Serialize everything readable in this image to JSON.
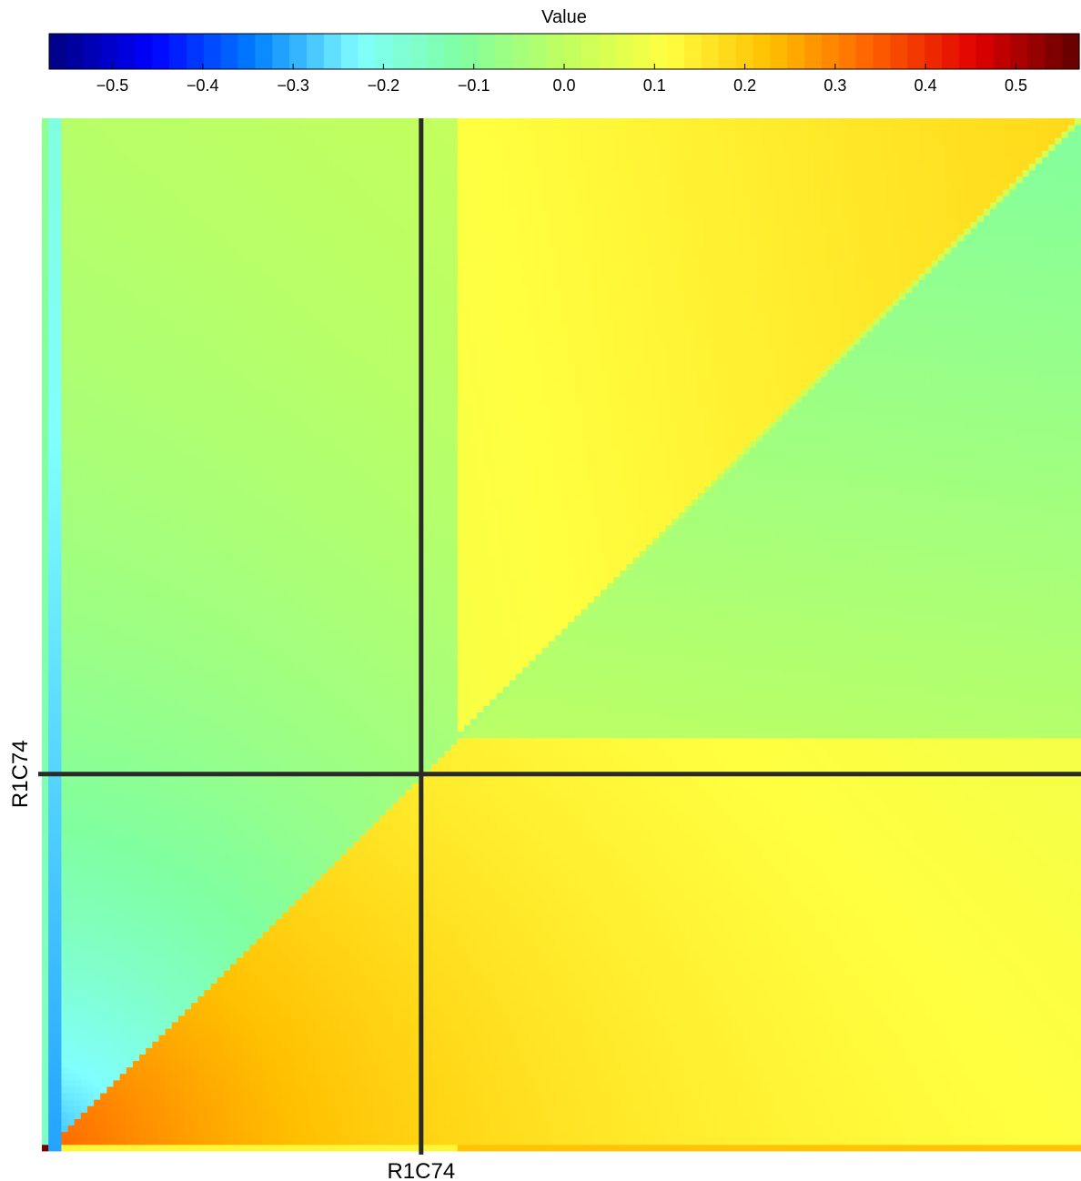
{
  "chart_data": {
    "type": "heatmap",
    "colorbar": {
      "title": "Value",
      "range": [
        -0.57,
        0.57
      ],
      "ticks": [
        -0.5,
        -0.4,
        -0.3,
        -0.2,
        -0.1,
        0.0,
        0.1,
        0.2,
        0.3,
        0.4,
        0.5
      ],
      "tick_labels": [
        "−0.5",
        "−0.4",
        "−0.3",
        "−0.2",
        "−0.1",
        "0.0",
        "0.1",
        "0.2",
        "0.3",
        "0.4",
        "0.5"
      ],
      "colormap": "jet",
      "colors": [
        "#000080",
        "#0000ff",
        "#0080ff",
        "#80ffff",
        "#80ffa0",
        "#c0ff60",
        "#ffff40",
        "#ffc000",
        "#ff6000",
        "#e00000",
        "#600000"
      ]
    },
    "grid_size": 160,
    "marker": {
      "label": "R1C74",
      "x_fraction": 0.365,
      "y_fraction": 0.365,
      "x_label": "R1C74",
      "y_label": "R1C74"
    },
    "value_pattern": "symmetric correlation-like matrix; lower-left triangle below diagonal shows strong negative values near first columns (blue) and strong positive values near bottom rows (orange/red); upper triangle mostly 0.0 to 0.15 (green/yellow); region right of diagonal near 0 to -0.1 (cyan/green)",
    "axes": {
      "x_label": "R1C74",
      "y_label": "R1C74"
    },
    "line_color": "#2a2a2a"
  }
}
